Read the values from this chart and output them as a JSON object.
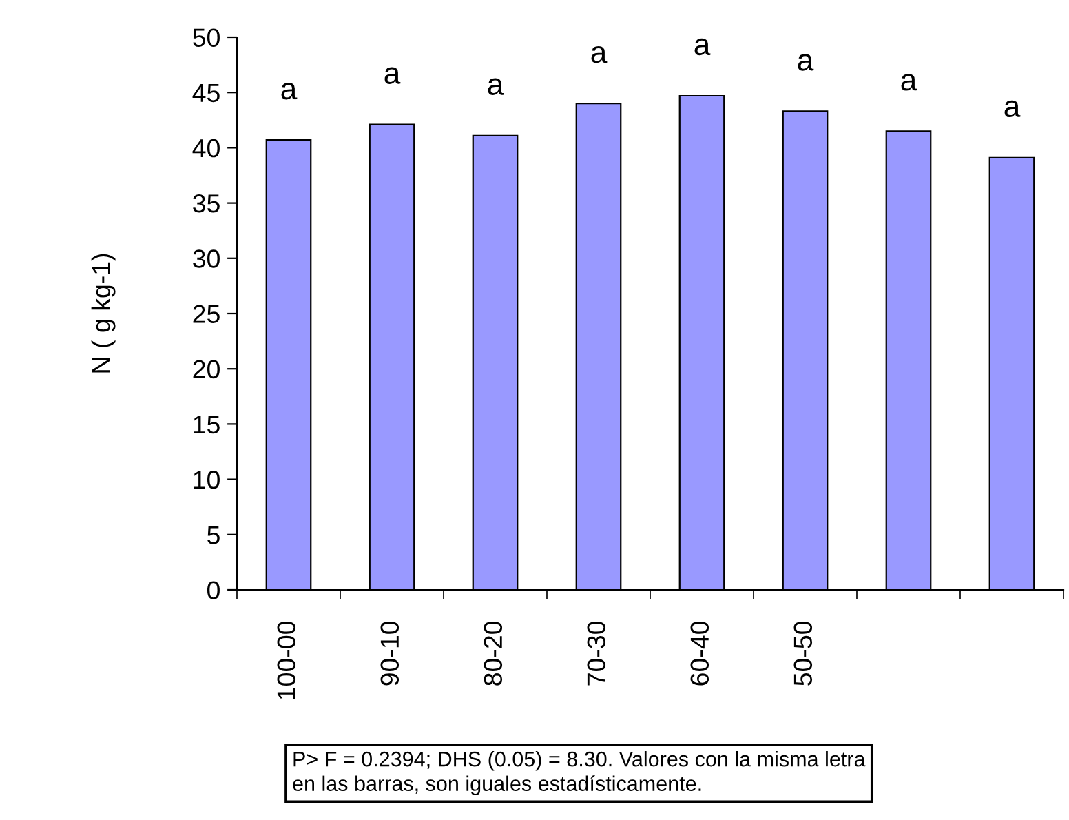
{
  "chart_data": {
    "type": "bar",
    "ylabel": "N ( g kg-1)",
    "categories": [
      "100-00",
      "90-10",
      "80-20",
      "70-30",
      "60-40",
      "50-50",
      null,
      null
    ],
    "values": [
      40.7,
      42.1,
      41.1,
      44.0,
      44.7,
      43.3,
      41.5,
      39.1
    ],
    "value_labels": [
      "a",
      "a",
      "a",
      "a",
      "a",
      "a",
      "a",
      "a"
    ],
    "color": "#9999ff",
    "ylim": [
      0,
      50
    ],
    "yticks": [
      0,
      5,
      10,
      15,
      20,
      25,
      30,
      35,
      40,
      45,
      50
    ],
    "annotations": [
      "P> F = 0.2394; DHS (0.05) = 8.30. Valores con la misma letra en las barras, son iguales estadísticamente."
    ]
  }
}
